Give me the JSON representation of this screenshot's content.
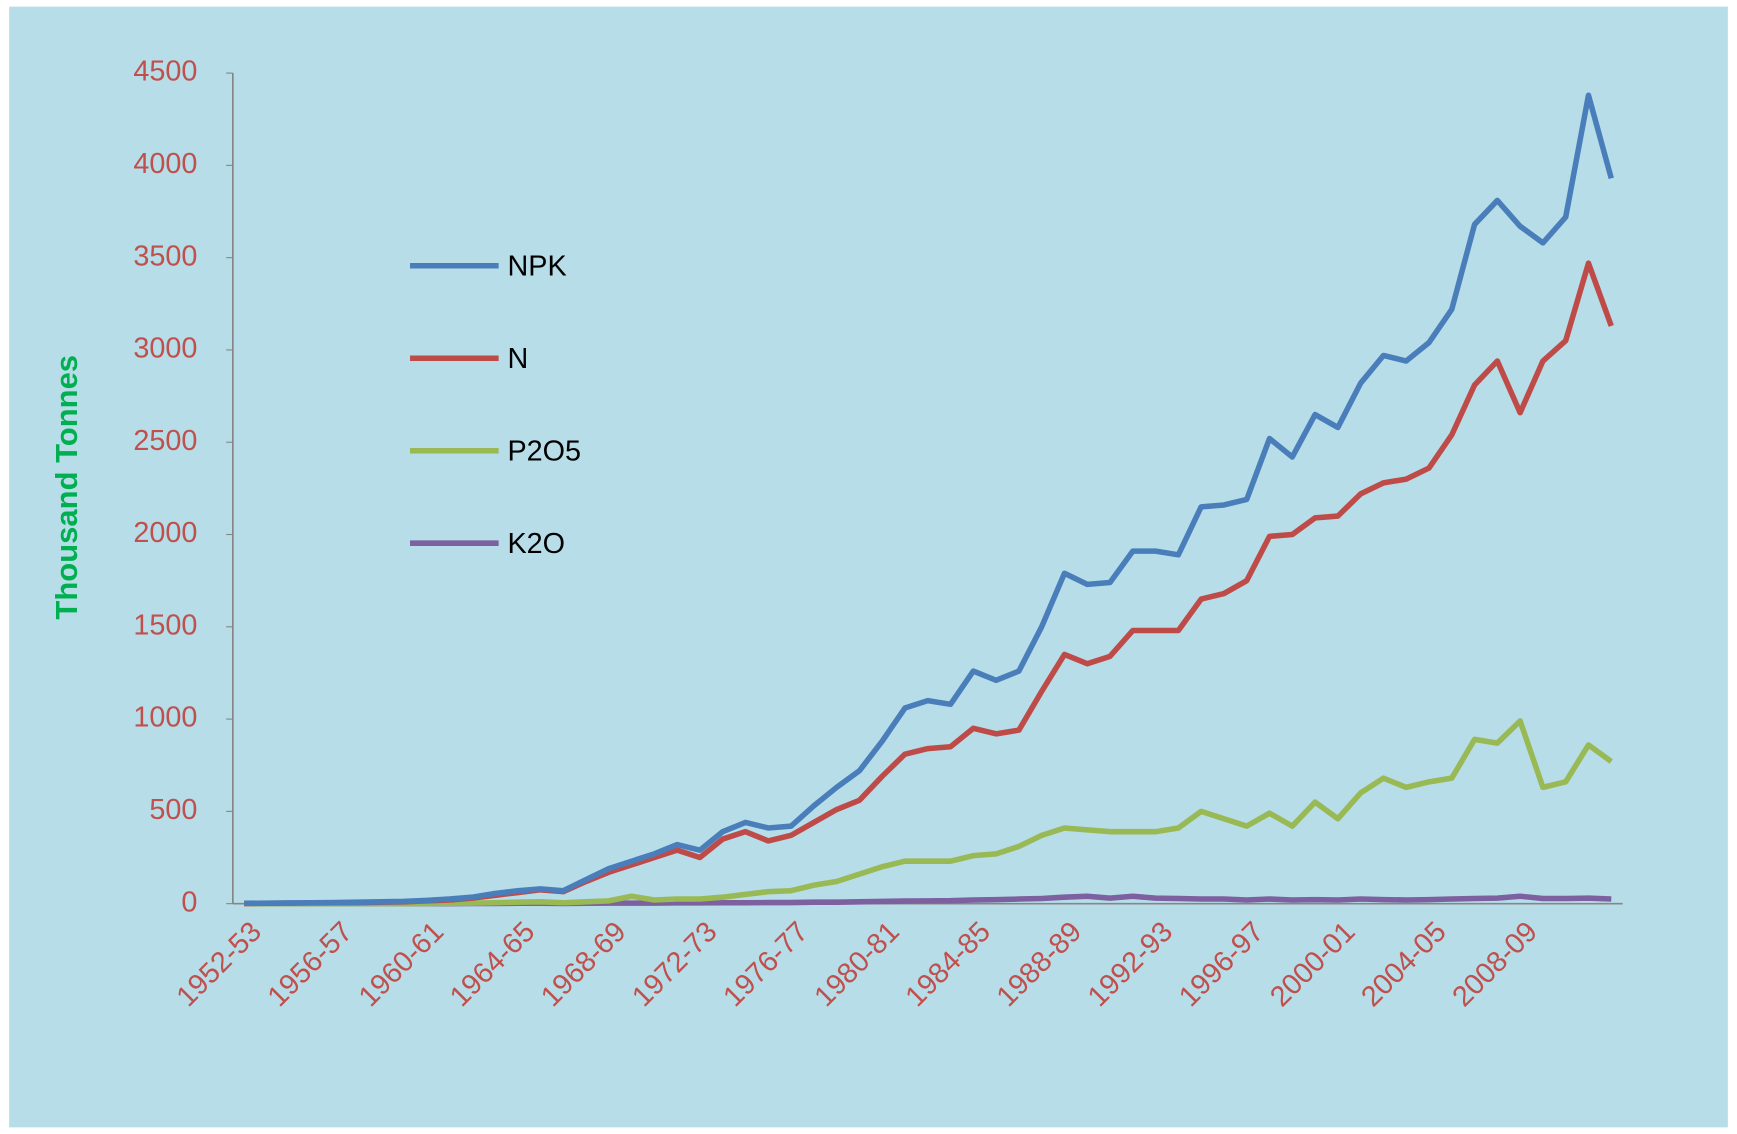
{
  "chart_data": {
    "type": "line",
    "y_label": "Thousand Tonnes",
    "categories": [
      "1952-53",
      null,
      null,
      null,
      "1956-57",
      null,
      null,
      null,
      "1960-61",
      null,
      null,
      null,
      "1964-65",
      null,
      null,
      null,
      "1968-69",
      null,
      null,
      null,
      "1972-73",
      null,
      null,
      null,
      "1976-77",
      null,
      null,
      null,
      "1980-81",
      null,
      null,
      null,
      "1984-85",
      null,
      null,
      null,
      "1988-89",
      null,
      null,
      null,
      "1992-93",
      null,
      null,
      null,
      "1996-97",
      null,
      null,
      null,
      "2000-01",
      null,
      null,
      null,
      "2004-05",
      null,
      null,
      null,
      "2008-09",
      null,
      null,
      null,
      null
    ],
    "series": [
      {
        "name": "NPK",
        "color": "#4a7ebb",
        "values": [
          2,
          3,
          4,
          5,
          6,
          8,
          10,
          12,
          18,
          25,
          35,
          55,
          70,
          80,
          70,
          130,
          190,
          230,
          270,
          320,
          290,
          390,
          440,
          410,
          420,
          530,
          630,
          720,
          880,
          1060,
          1100,
          1080,
          1260,
          1210,
          1260,
          1500,
          1790,
          1730,
          1740,
          1910,
          1910,
          1890,
          2150,
          2160,
          2190,
          2520,
          2420,
          2650,
          2580,
          2820,
          2970,
          2940,
          3040,
          3220,
          3680,
          3810,
          3670,
          3580,
          3720,
          4380,
          3930
        ]
      },
      {
        "name": "N",
        "color": "#be4b48",
        "values": [
          1,
          2,
          3,
          4,
          5,
          6,
          8,
          10,
          15,
          20,
          30,
          45,
          60,
          75,
          65,
          120,
          170,
          210,
          250,
          290,
          250,
          350,
          390,
          340,
          370,
          440,
          510,
          560,
          690,
          810,
          840,
          850,
          950,
          920,
          940,
          1150,
          1350,
          1300,
          1340,
          1480,
          1480,
          1480,
          1650,
          1680,
          1750,
          1990,
          2000,
          2090,
          2100,
          2220,
          2280,
          2300,
          2360,
          2540,
          2810,
          2940,
          2660,
          2940,
          3050,
          3470,
          3130
        ]
      },
      {
        "name": "P2O5",
        "color": "#98b954",
        "values": [
          0,
          0,
          0,
          0,
          0,
          0,
          0,
          0,
          1,
          2,
          3,
          5,
          8,
          10,
          5,
          10,
          15,
          40,
          20,
          25,
          25,
          35,
          50,
          65,
          70,
          100,
          120,
          160,
          200,
          230,
          230,
          230,
          260,
          270,
          310,
          370,
          410,
          400,
          390,
          390,
          390,
          410,
          500,
          460,
          420,
          490,
          420,
          550,
          460,
          600,
          680,
          630,
          660,
          680,
          890,
          870,
          990,
          630,
          660,
          860,
          770
        ]
      },
      {
        "name": "K2O",
        "color": "#7d60a0",
        "values": [
          0,
          0,
          0,
          0,
          0,
          0,
          0,
          0,
          0,
          0,
          1,
          1,
          2,
          2,
          1,
          2,
          3,
          3,
          3,
          4,
          4,
          5,
          5,
          6,
          6,
          8,
          8,
          10,
          12,
          14,
          15,
          16,
          20,
          22,
          25,
          28,
          35,
          40,
          30,
          40,
          30,
          28,
          25,
          25,
          20,
          25,
          20,
          22,
          20,
          25,
          22,
          20,
          22,
          25,
          28,
          30,
          40,
          28,
          28,
          30,
          25
        ]
      }
    ],
    "ylim": [
      0,
      4500
    ],
    "yticks": [
      0,
      500,
      1000,
      1500,
      2000,
      2500,
      3000,
      3500,
      4000,
      4500
    ]
  }
}
